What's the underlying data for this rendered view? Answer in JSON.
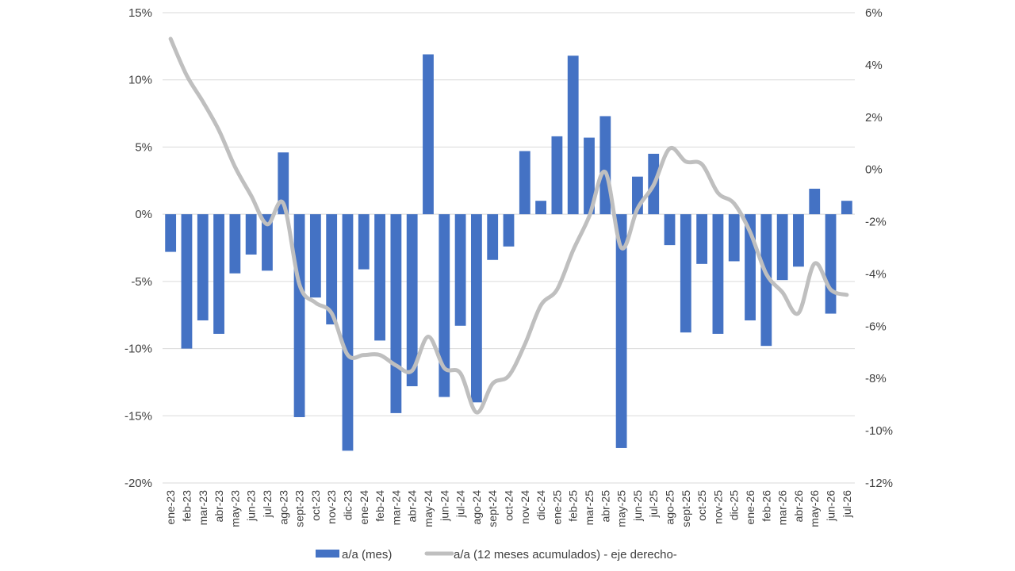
{
  "chart_data": {
    "type": "bar",
    "categories": [
      "ene-23",
      "feb-23",
      "mar-23",
      "abr-23",
      "may-23",
      "jun-23",
      "jul-23",
      "ago-23",
      "sept-23",
      "oct-23",
      "nov-23",
      "dic-23",
      "ene-24",
      "feb-24",
      "mar-24",
      "abr-24",
      "may-24",
      "jun-24",
      "jul-24",
      "ago-24",
      "sept-24",
      "oct-24",
      "nov-24",
      "dic-24",
      "ene-25",
      "feb-25",
      "mar-25",
      "abr-25",
      "may-25",
      "jun-25",
      "jul-25",
      "ago-25",
      "sept-25",
      "oct-25",
      "nov-25",
      "dic-25",
      "ene-26",
      "feb-26",
      "mar-26",
      "abr-26",
      "may-26",
      "jun-26",
      "jul-26"
    ],
    "series": [
      {
        "name": "a/a (mes)",
        "type": "bar",
        "axis": "left",
        "color": "#4472C4",
        "values": [
          -2.8,
          -10.0,
          -7.9,
          -8.9,
          -4.4,
          -3.0,
          -4.2,
          4.6,
          -15.1,
          -6.2,
          -8.2,
          -17.6,
          -4.1,
          -9.4,
          -14.8,
          -12.8,
          11.9,
          -13.6,
          -8.3,
          -14.0,
          -3.4,
          -2.4,
          4.7,
          1.0,
          5.8,
          11.8,
          5.7,
          7.3,
          -17.4,
          2.8,
          4.5,
          -2.3,
          -8.8,
          -3.7,
          -8.9,
          -3.5,
          -7.9,
          -9.8,
          -4.9,
          -3.9,
          1.9,
          -7.4,
          1.0
        ]
      },
      {
        "name": "a/a (12 meses acumulados) - eje derecho-",
        "type": "line",
        "axis": "right",
        "color": "#BFBFBF",
        "values": [
          5.0,
          3.6,
          2.6,
          1.5,
          0.1,
          -1.0,
          -2.1,
          -1.3,
          -4.4,
          -5.1,
          -5.5,
          -7.1,
          -7.1,
          -7.1,
          -7.5,
          -7.7,
          -6.4,
          -7.6,
          -7.8,
          -9.3,
          -8.2,
          -7.9,
          -6.7,
          -5.2,
          -4.6,
          -3.1,
          -1.8,
          -0.1,
          -3.0,
          -1.5,
          -0.6,
          0.8,
          0.3,
          0.2,
          -0.9,
          -1.3,
          -2.4,
          -4.0,
          -4.7,
          -5.5,
          -3.6,
          -4.6,
          -4.8
        ]
      }
    ],
    "y_left": {
      "min": -20,
      "max": 15,
      "ticks": [
        15,
        10,
        5,
        0,
        -5,
        -10,
        -15,
        -20
      ],
      "tick_labels": [
        "15%",
        "10%",
        "5%",
        "0%",
        "-5%",
        "-10%",
        "-15%",
        "-20%"
      ]
    },
    "y_right": {
      "min": -12,
      "max": 6,
      "ticks": [
        6,
        4,
        2,
        0,
        -2,
        -4,
        -6,
        -8,
        -10,
        -12
      ],
      "tick_labels": [
        "6%",
        "4%",
        "2%",
        "0%",
        "-2%",
        "-4%",
        "-6%",
        "-8%",
        "-10%",
        "-12%"
      ]
    },
    "grid": true,
    "legend_position": "bottom",
    "title": "",
    "xlabel": "",
    "ylabel": ""
  }
}
